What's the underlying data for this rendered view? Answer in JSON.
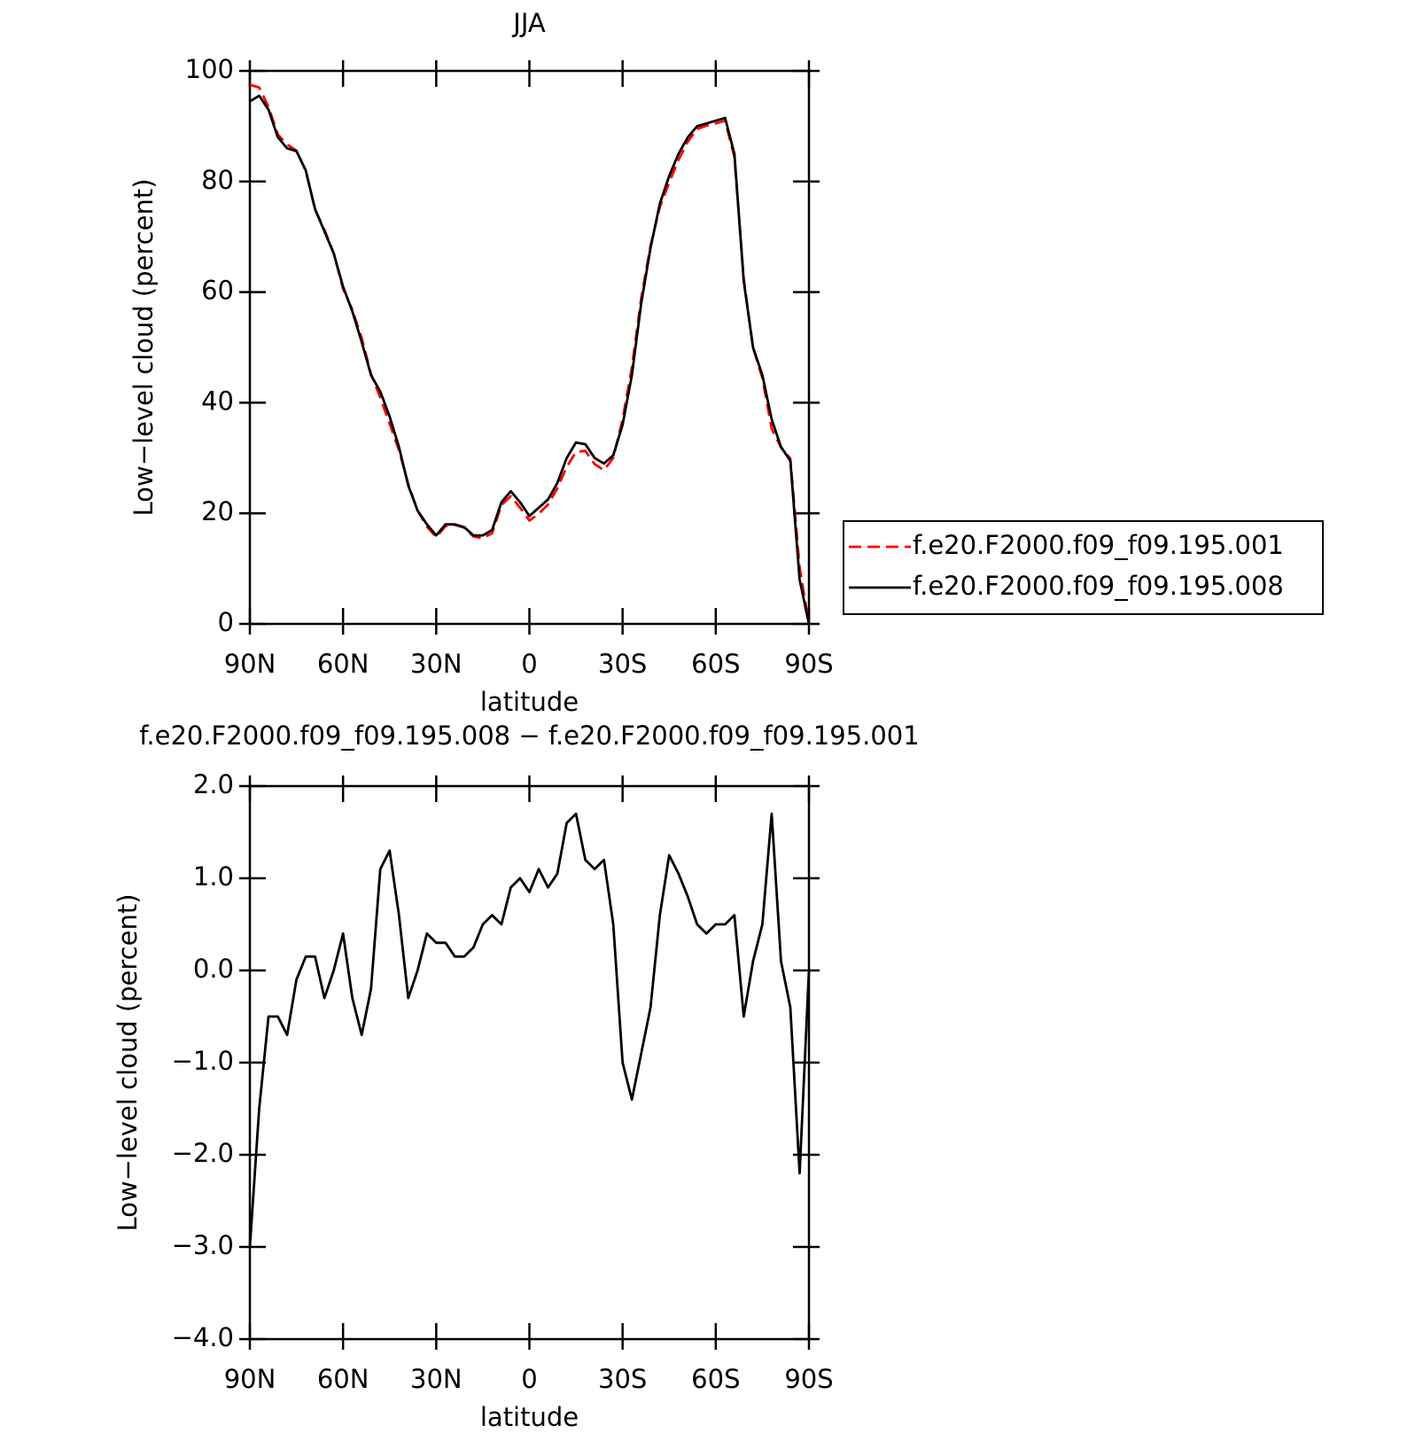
{
  "chart_data": [
    {
      "type": "line",
      "title": "JJA",
      "xlabel": "latitude",
      "ylabel": "Low−level cloud (percent)",
      "x": [
        90,
        87,
        84,
        81,
        78,
        75,
        72,
        69,
        66,
        63,
        60,
        57,
        54,
        51,
        48,
        45,
        42,
        39,
        36,
        33,
        30,
        27,
        24,
        21,
        18,
        15,
        12,
        9,
        6,
        3,
        0,
        -3,
        -6,
        -9,
        -12,
        -15,
        -18,
        -21,
        -24,
        -27,
        -30,
        -33,
        -36,
        -39,
        -42,
        -45,
        -48,
        -51,
        -54,
        -57,
        -60,
        -63,
        -66,
        -69,
        -72,
        -75,
        -78,
        -81,
        -84,
        -87,
        -90
      ],
      "series": [
        {
          "name": "f.e20.F2000.f09_f09.195.001",
          "color": "#ff0000",
          "dash": true,
          "values": [
            97.5,
            97,
            93.5,
            88.5,
            86.7,
            85.6,
            81.9,
            74.9,
            71.3,
            67,
            60.6,
            56.8,
            51.7,
            45.2,
            40.9,
            36.2,
            31.4,
            25.3,
            20.5,
            17.6,
            15.7,
            17.7,
            17.9,
            17.4,
            15.8,
            15.5,
            16.4,
            21.5,
            23.1,
            21,
            18.7,
            19.9,
            21.6,
            24.5,
            28.4,
            31.1,
            31.3,
            28.9,
            27.8,
            30,
            37,
            46.4,
            58.9,
            68.4,
            75.4,
            79.8,
            83.9,
            87.2,
            89.5,
            90.1,
            90.5,
            91,
            84.4,
            62.5,
            49.9,
            44.5,
            35.3,
            31.9,
            29.9,
            10.2,
            0
          ]
        },
        {
          "name": "f.e20.F2000.f09_f09.195.008",
          "color": "#000000",
          "dash": false,
          "values": [
            94.5,
            95.5,
            93,
            88,
            86,
            85.5,
            82,
            75,
            71,
            67,
            61,
            56.5,
            51,
            45,
            42,
            37.5,
            32,
            25,
            20.5,
            18,
            16,
            18,
            18,
            17.5,
            16,
            16,
            17,
            22,
            24,
            22,
            19.5,
            21,
            22.5,
            25.5,
            30,
            32.8,
            32.5,
            30,
            29,
            30.5,
            36,
            45,
            58,
            68,
            76,
            81,
            85,
            88,
            90,
            90.5,
            91,
            91.5,
            85,
            62,
            50,
            45,
            37,
            32,
            29.5,
            8,
            0
          ]
        }
      ],
      "xlim": [
        90,
        -90
      ],
      "xticks": [
        {
          "value": 90,
          "label": "90N"
        },
        {
          "value": 60,
          "label": "60N"
        },
        {
          "value": 30,
          "label": "30N"
        },
        0,
        {
          "value": -30,
          "label": "30S"
        },
        {
          "value": -60,
          "label": "60S"
        },
        {
          "value": -90,
          "label": "90S"
        }
      ],
      "ylim": [
        0,
        100
      ],
      "yticks": [
        0,
        20,
        40,
        60,
        80,
        100
      ],
      "legend": "right"
    },
    {
      "type": "line",
      "title": "f.e20.F2000.f09_f09.195.008 − f.e20.F2000.f09_f09.195.001",
      "xlabel": "latitude",
      "ylabel": "Low−level cloud (percent)",
      "x": [
        90,
        87,
        84,
        81,
        78,
        75,
        72,
        69,
        66,
        63,
        60,
        57,
        54,
        51,
        48,
        45,
        42,
        39,
        36,
        33,
        30,
        27,
        24,
        21,
        18,
        15,
        12,
        9,
        6,
        3,
        0,
        -3,
        -6,
        -9,
        -12,
        -15,
        -18,
        -21,
        -24,
        -27,
        -30,
        -33,
        -36,
        -39,
        -42,
        -45,
        -48,
        -51,
        -54,
        -57,
        -60,
        -63,
        -66,
        -69,
        -72,
        -75,
        -78,
        -81,
        -84,
        -87,
        -90
      ],
      "series": [
        {
          "color": "#000000",
          "values": [
            -3.0,
            -1.5,
            -0.5,
            -0.5,
            -0.7,
            -0.1,
            0.15,
            0.15,
            -0.3,
            0.0,
            0.4,
            -0.3,
            -0.7,
            -0.2,
            1.1,
            1.3,
            0.6,
            -0.3,
            0.0,
            0.4,
            0.3,
            0.3,
            0.15,
            0.15,
            0.25,
            0.5,
            0.6,
            0.5,
            0.9,
            1.0,
            0.85,
            1.1,
            0.9,
            1.05,
            1.6,
            1.7,
            1.2,
            1.1,
            1.2,
            0.5,
            -1.0,
            -1.4,
            -0.9,
            -0.4,
            0.6,
            1.25,
            1.05,
            0.8,
            0.5,
            0.4,
            0.5,
            0.5,
            0.6,
            -0.5,
            0.1,
            0.5,
            1.7,
            0.1,
            -0.4,
            -2.2,
            0.0
          ]
        }
      ],
      "xlim": [
        90,
        -90
      ],
      "xticks": [
        {
          "value": 90,
          "label": "90N"
        },
        {
          "value": 60,
          "label": "60N"
        },
        {
          "value": 30,
          "label": "30N"
        },
        0,
        {
          "value": -30,
          "label": "30S"
        },
        {
          "value": -60,
          "label": "60S"
        },
        {
          "value": -90,
          "label": "90S"
        }
      ],
      "ylim": [
        -4,
        2
      ],
      "yticks": [
        {
          "value": -4,
          "label": "−4.0"
        },
        {
          "value": -3,
          "label": "−3.0"
        },
        {
          "value": -2,
          "label": "−2.0"
        },
        {
          "value": -1,
          "label": "−1.0"
        },
        {
          "value": 0,
          "label": "0.0"
        },
        {
          "value": 1,
          "label": "1.0"
        },
        {
          "value": 2,
          "label": "2.0"
        }
      ]
    }
  ]
}
